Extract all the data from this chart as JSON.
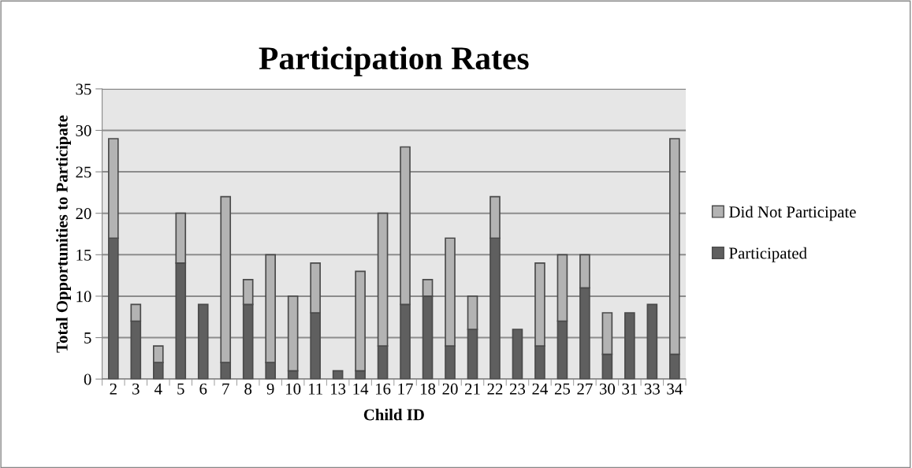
{
  "chart_data": {
    "type": "bar",
    "title": "Participation Rates",
    "xlabel": "Child ID",
    "ylabel": "Total Opportunities to Participate",
    "categories": [
      "2",
      "3",
      "4",
      "5",
      "6",
      "7",
      "8",
      "9",
      "10",
      "11",
      "13",
      "14",
      "16",
      "17",
      "18",
      "20",
      "21",
      "22",
      "23",
      "24",
      "25",
      "27",
      "30",
      "31",
      "33",
      "34"
    ],
    "stacked": true,
    "series": [
      {
        "name": "Participated",
        "color": "#5f5f5f",
        "values": [
          17,
          7,
          2,
          14,
          9,
          2,
          9,
          2,
          1,
          8,
          1,
          1,
          4,
          9,
          10,
          4,
          6,
          17,
          6,
          4,
          7,
          11,
          3,
          8,
          9,
          3
        ]
      },
      {
        "name": "Did Not Participate",
        "color": "#b3b3b3",
        "values": [
          12,
          2,
          2,
          6,
          0,
          20,
          3,
          13,
          9,
          6,
          0,
          12,
          16,
          19,
          2,
          13,
          4,
          5,
          0,
          10,
          8,
          4,
          5,
          0,
          0,
          26
        ]
      }
    ],
    "ylim": [
      0,
      35
    ],
    "yticks": [
      0,
      5,
      10,
      15,
      20,
      25,
      30,
      35
    ],
    "grid": "y",
    "legend": "right"
  }
}
